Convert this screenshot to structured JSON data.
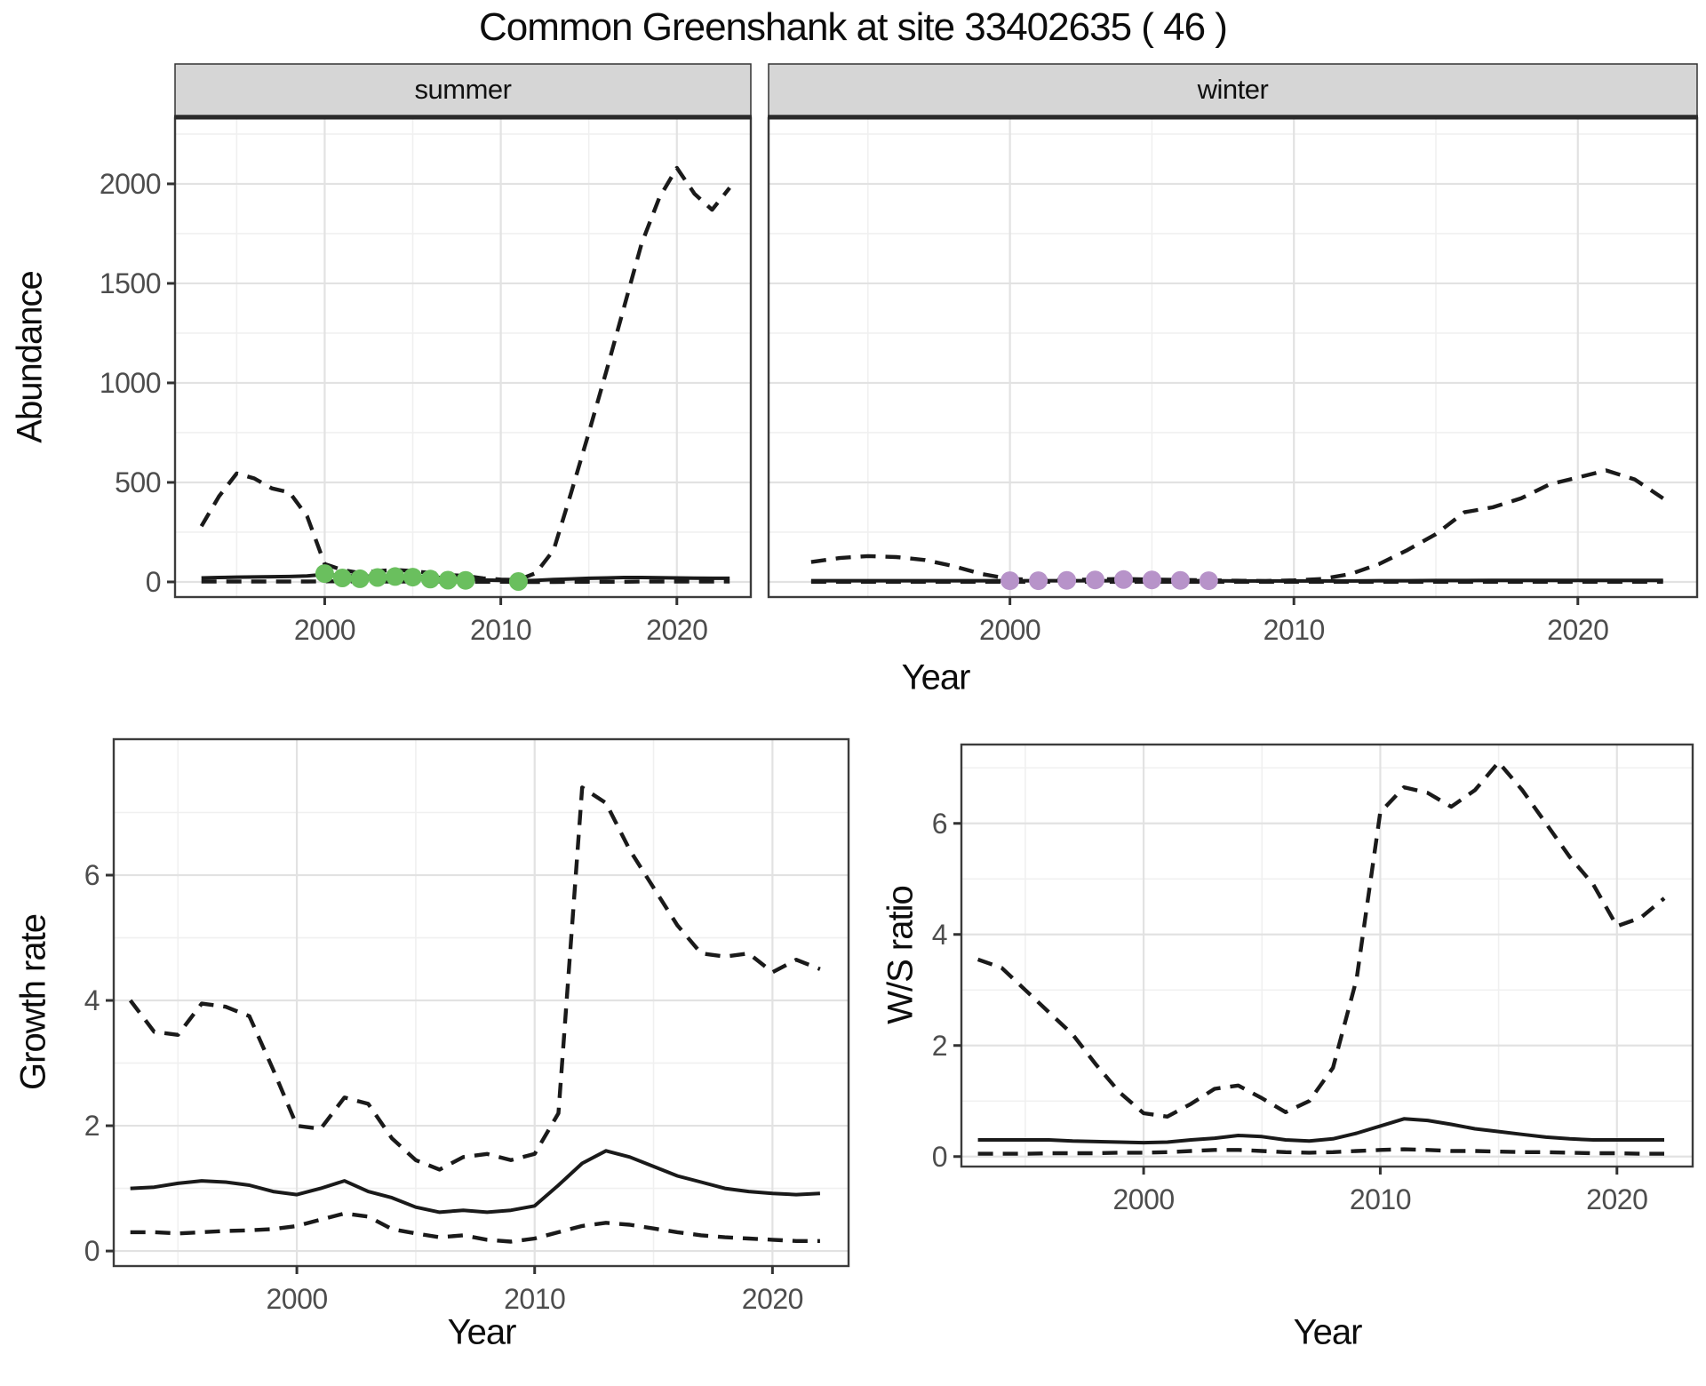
{
  "title": "Common Greenshank at site 33402635 ( 46 )",
  "labels": {
    "year": "Year",
    "abundance": "Abundance",
    "growth_rate": "Growth rate",
    "ws_ratio": "W/S ratio"
  },
  "style": {
    "line_color": "#1a1a1a",
    "summer_point_color": "#6abf5e",
    "winter_point_color": "#b793c9",
    "strip_bg": "#d6d6d6",
    "strip_border": "#333333",
    "panel_border": "#3c3c3c",
    "grid_major": "#e2e2e2",
    "grid_minor": "#f0f0f0",
    "tick_text": "#4d4d4d",
    "panel_bg": "#ffffff"
  },
  "chart_data": [
    {
      "id": "abundance-summer",
      "type": "line",
      "facet_label": "summer",
      "xlabel": "Year",
      "ylabel": "Abundance",
      "xlim": [
        1991.5,
        2024.2
      ],
      "ylim": [
        -76,
        2330
      ],
      "xticks": [
        2000,
        2010,
        2020
      ],
      "yticks": [
        0,
        500,
        1000,
        1500,
        2000
      ],
      "xminor": [
        1995,
        2005,
        2015
      ],
      "yminor": [
        250,
        750,
        1250,
        1750,
        2250
      ],
      "x": [
        1993,
        1994,
        1995,
        1996,
        1997,
        1998,
        1999,
        2000,
        2001,
        2002,
        2003,
        2004,
        2005,
        2006,
        2007,
        2008,
        2009,
        2010,
        2011,
        2012,
        2013,
        2014,
        2015,
        2016,
        2017,
        2018,
        2019,
        2020,
        2021,
        2022,
        2023
      ],
      "series": [
        {
          "name": "upper-95ci",
          "style": "dashed",
          "values": [
            280,
            430,
            545,
            520,
            470,
            450,
            330,
            90,
            60,
            45,
            55,
            60,
            55,
            45,
            35,
            30,
            18,
            12,
            10,
            45,
            160,
            450,
            750,
            1060,
            1380,
            1700,
            1930,
            2080,
            1950,
            1870,
            1980
          ]
        },
        {
          "name": "median-estimate",
          "style": "solid",
          "values": [
            20,
            22,
            24,
            25,
            26,
            27,
            30,
            38,
            32,
            28,
            30,
            30,
            28,
            25,
            20,
            15,
            10,
            8,
            5,
            8,
            12,
            15,
            18,
            20,
            22,
            22,
            21,
            20,
            19,
            18,
            18
          ]
        },
        {
          "name": "lower-95ci",
          "style": "dashed",
          "values": [
            2,
            2,
            2,
            2,
            2,
            2,
            2,
            3,
            3,
            2,
            2,
            2,
            2,
            2,
            2,
            1,
            1,
            1,
            0,
            0,
            0,
            1,
            1,
            1,
            1,
            2,
            2,
            2,
            2,
            2,
            2
          ]
        }
      ],
      "points": {
        "name": "observed-counts",
        "color_key": "summer_point_color",
        "years": [
          2000,
          2001,
          2002,
          2003,
          2004,
          2005,
          2006,
          2007,
          2008,
          2011
        ],
        "values": [
          42,
          20,
          16,
          22,
          27,
          24,
          14,
          9,
          8,
          2
        ]
      }
    },
    {
      "id": "abundance-winter",
      "type": "line",
      "facet_label": "winter",
      "xlabel": "Year",
      "xlim": [
        1991.5,
        2024.2
      ],
      "ylim": [
        -76,
        2330
      ],
      "xticks": [
        2000,
        2010,
        2020
      ],
      "yticks": [
        0,
        500,
        1000,
        1500,
        2000
      ],
      "xminor": [
        1995,
        2005,
        2015
      ],
      "yminor": [
        250,
        750,
        1250,
        1750,
        2250
      ],
      "x": [
        1993,
        1994,
        1995,
        1996,
        1997,
        1998,
        1999,
        2000,
        2001,
        2002,
        2003,
        2004,
        2005,
        2006,
        2007,
        2008,
        2009,
        2010,
        2011,
        2012,
        2013,
        2014,
        2015,
        2016,
        2017,
        2018,
        2019,
        2020,
        2021,
        2022,
        2023
      ],
      "series": [
        {
          "name": "upper-95ci",
          "style": "dashed",
          "values": [
            100,
            120,
            130,
            125,
            110,
            80,
            40,
            15,
            10,
            10,
            12,
            15,
            12,
            10,
            8,
            6,
            5,
            8,
            15,
            40,
            90,
            160,
            240,
            350,
            375,
            420,
            490,
            525,
            560,
            515,
            420
          ]
        },
        {
          "name": "median-estimate",
          "style": "solid",
          "values": [
            6,
            6,
            6,
            6,
            6,
            6,
            6,
            6,
            6,
            6,
            6,
            6,
            6,
            6,
            6,
            5,
            5,
            5,
            5,
            5,
            6,
            6,
            7,
            7,
            8,
            8,
            8,
            8,
            8,
            8,
            8
          ]
        },
        {
          "name": "lower-95ci",
          "style": "dashed",
          "values": [
            1,
            1,
            1,
            1,
            1,
            1,
            1,
            1,
            1,
            1,
            1,
            1,
            1,
            1,
            1,
            1,
            1,
            1,
            1,
            1,
            1,
            1,
            1,
            1,
            1,
            1,
            1,
            1,
            1,
            1,
            1
          ]
        }
      ],
      "points": {
        "name": "observed-counts",
        "color_key": "winter_point_color",
        "years": [
          2000,
          2001,
          2002,
          2003,
          2004,
          2005,
          2006,
          2007
        ],
        "values": [
          6,
          6,
          8,
          10,
          12,
          10,
          8,
          6
        ]
      }
    },
    {
      "id": "growth-rate",
      "type": "line",
      "xlabel": "Year",
      "ylabel": "Growth rate",
      "xlim": [
        1992.3,
        2023.2
      ],
      "ylim": [
        -0.24,
        8.17
      ],
      "xticks": [
        2000,
        2010,
        2020
      ],
      "yticks": [
        0,
        2,
        4,
        6
      ],
      "xminor": [
        1995,
        2005,
        2015
      ],
      "yminor": [
        1,
        3,
        5,
        7
      ],
      "x": [
        1993,
        1994,
        1995,
        1996,
        1997,
        1998,
        1999,
        2000,
        2001,
        2002,
        2003,
        2004,
        2005,
        2006,
        2007,
        2008,
        2009,
        2010,
        2011,
        2012,
        2013,
        2014,
        2015,
        2016,
        2017,
        2018,
        2019,
        2020,
        2021,
        2022
      ],
      "series": [
        {
          "name": "upper-95ci",
          "style": "dashed",
          "values": [
            4.0,
            3.5,
            3.45,
            3.95,
            3.9,
            3.75,
            2.9,
            2.0,
            1.95,
            2.45,
            2.35,
            1.8,
            1.45,
            1.3,
            1.5,
            1.55,
            1.45,
            1.55,
            2.2,
            7.4,
            7.15,
            6.4,
            5.8,
            5.2,
            4.75,
            4.7,
            4.75,
            4.45,
            4.65,
            4.5
          ]
        },
        {
          "name": "median-estimate",
          "style": "solid",
          "values": [
            1.0,
            1.02,
            1.08,
            1.12,
            1.1,
            1.05,
            0.95,
            0.9,
            1.0,
            1.12,
            0.95,
            0.85,
            0.7,
            0.62,
            0.65,
            0.62,
            0.65,
            0.72,
            1.05,
            1.4,
            1.6,
            1.5,
            1.35,
            1.2,
            1.1,
            1.0,
            0.95,
            0.92,
            0.9,
            0.92
          ]
        },
        {
          "name": "lower-95ci",
          "style": "dashed",
          "values": [
            0.3,
            0.3,
            0.28,
            0.3,
            0.32,
            0.33,
            0.35,
            0.4,
            0.5,
            0.6,
            0.55,
            0.35,
            0.28,
            0.22,
            0.25,
            0.18,
            0.15,
            0.2,
            0.3,
            0.4,
            0.45,
            0.42,
            0.36,
            0.3,
            0.25,
            0.22,
            0.2,
            0.18,
            0.16,
            0.16
          ]
        }
      ]
    },
    {
      "id": "ws-ratio",
      "type": "line",
      "xlabel": "Year",
      "ylabel": "W/S ratio",
      "xlim": [
        1992.3,
        2023.2
      ],
      "ylim": [
        -0.18,
        7.42
      ],
      "xticks": [
        2000,
        2010,
        2020
      ],
      "yticks": [
        0,
        2,
        4,
        6
      ],
      "xminor": [
        1995,
        2005,
        2015
      ],
      "yminor": [
        1,
        3,
        5,
        7
      ],
      "x": [
        1993,
        1994,
        1995,
        1996,
        1997,
        1998,
        1999,
        2000,
        2001,
        2002,
        2003,
        2004,
        2005,
        2006,
        2007,
        2008,
        2009,
        2010,
        2011,
        2012,
        2013,
        2014,
        2015,
        2016,
        2017,
        2018,
        2019,
        2020,
        2021,
        2022
      ],
      "series": [
        {
          "name": "upper-95ci",
          "style": "dashed",
          "values": [
            3.55,
            3.4,
            3.0,
            2.6,
            2.2,
            1.65,
            1.15,
            0.78,
            0.72,
            0.95,
            1.22,
            1.28,
            1.05,
            0.8,
            1.0,
            1.6,
            3.2,
            6.2,
            6.65,
            6.55,
            6.3,
            6.6,
            7.1,
            6.6,
            6.0,
            5.4,
            4.9,
            4.15,
            4.3,
            4.65
          ]
        },
        {
          "name": "median-estimate",
          "style": "solid",
          "values": [
            0.3,
            0.3,
            0.3,
            0.3,
            0.28,
            0.27,
            0.26,
            0.25,
            0.26,
            0.3,
            0.33,
            0.38,
            0.36,
            0.3,
            0.28,
            0.32,
            0.42,
            0.55,
            0.68,
            0.65,
            0.58,
            0.5,
            0.45,
            0.4,
            0.35,
            0.32,
            0.3,
            0.3,
            0.3,
            0.3
          ]
        },
        {
          "name": "lower-95ci",
          "style": "dashed",
          "values": [
            0.05,
            0.05,
            0.05,
            0.06,
            0.06,
            0.06,
            0.07,
            0.07,
            0.08,
            0.1,
            0.12,
            0.12,
            0.1,
            0.08,
            0.07,
            0.08,
            0.1,
            0.12,
            0.13,
            0.12,
            0.1,
            0.1,
            0.09,
            0.08,
            0.08,
            0.07,
            0.06,
            0.06,
            0.05,
            0.05
          ]
        }
      ]
    }
  ]
}
